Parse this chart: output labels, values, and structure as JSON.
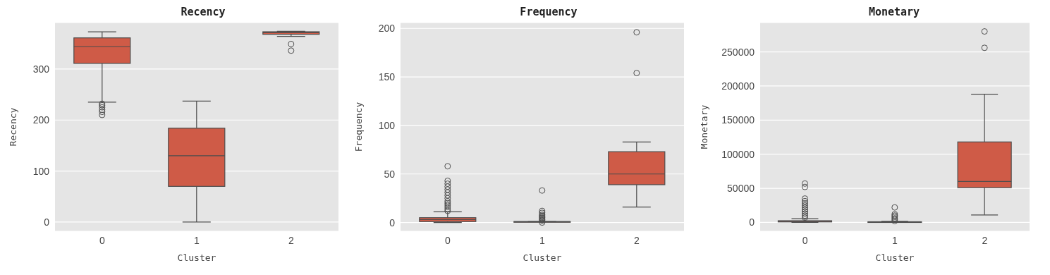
{
  "chart_data": [
    {
      "type": "box",
      "title": "Recency",
      "xlabel": "Cluster",
      "ylabel": "Recency",
      "categories": [
        "0",
        "1",
        "2"
      ],
      "color": "#cf5b47",
      "grid": "y",
      "ylim": [
        -18,
        391
      ],
      "yticks": [
        0,
        100,
        200,
        300
      ],
      "boxes": [
        {
          "low": 235,
          "q1": 311,
          "median": 344,
          "q3": 361,
          "high": 373,
          "outliers": [
            232,
            229,
            225,
            220,
            216,
            210
          ]
        },
        {
          "low": 0,
          "q1": 70,
          "median": 130,
          "q3": 184,
          "high": 237
        },
        {
          "low": 364,
          "q1": 368,
          "median": 371,
          "q3": 373,
          "high": 374,
          "outliers": [
            349,
            336
          ]
        }
      ]
    },
    {
      "type": "box",
      "title": "Frequency",
      "xlabel": "Cluster",
      "ylabel": "Frequency",
      "categories": [
        "0",
        "1",
        "2"
      ],
      "color": "#cf5b47",
      "grid": "y",
      "ylim": [
        -9,
        206
      ],
      "yticks": [
        0,
        50,
        100,
        150,
        200
      ],
      "boxes": [
        {
          "low": 0,
          "q1": 1,
          "median": 3,
          "q3": 5,
          "high": 11,
          "outliers": [
            12,
            14,
            16,
            18,
            20,
            22,
            25,
            28,
            31,
            34,
            37,
            40,
            43,
            58
          ]
        },
        {
          "low": 1,
          "q1": 1,
          "median": 1,
          "q3": 1,
          "high": 1,
          "outliers": [
            0,
            2,
            3,
            4,
            5,
            6,
            7,
            8,
            10,
            12,
            33
          ]
        },
        {
          "low": 16,
          "q1": 39,
          "median": 50,
          "q3": 73,
          "high": 83,
          "outliers": [
            154,
            196
          ]
        }
      ]
    },
    {
      "type": "box",
      "title": "Monetary",
      "xlabel": "Cluster",
      "ylabel": "Monetary",
      "categories": [
        "0",
        "1",
        "2"
      ],
      "color": "#cf5b47",
      "grid": "y",
      "ylim": [
        -13000,
        293000
      ],
      "yticks": [
        0,
        50000,
        100000,
        150000,
        200000,
        250000
      ],
      "boxes": [
        {
          "low": 0,
          "q1": 700,
          "median": 1500,
          "q3": 2500,
          "high": 5500,
          "outliers": [
            7000,
            10000,
            13000,
            16000,
            19000,
            22000,
            25000,
            28000,
            31000,
            35000,
            52000,
            57000
          ]
        },
        {
          "low": 100,
          "q1": 400,
          "median": 700,
          "q3": 1000,
          "high": 1500,
          "outliers": [
            2000,
            4000,
            6000,
            8000,
            10000,
            12000,
            22000
          ]
        },
        {
          "low": 11000,
          "q1": 51000,
          "median": 60000,
          "q3": 118000,
          "high": 188000,
          "outliers": [
            256000,
            280000
          ]
        }
      ]
    }
  ]
}
